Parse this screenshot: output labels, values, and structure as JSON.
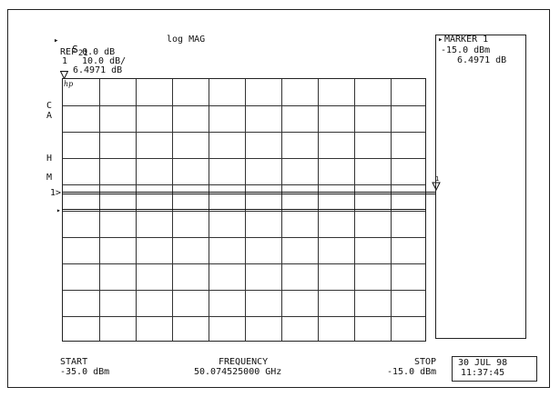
{
  "header": {
    "channel_arrow": "▸",
    "param_main": "S",
    "param_sub": "21",
    "format": "log MAG",
    "ref": "REF 0.0 dB",
    "marker_num": "1",
    "scale": "10.0 dB/",
    "marker_value": "6.4971 dB",
    "hp_logo": "hp"
  },
  "left_annotations": {
    "c": "C",
    "a": "A",
    "h": "H",
    "m": "M",
    "ref_marker": "1>",
    "ref_pointer": "▸"
  },
  "marker_panel": {
    "arrow": "▸",
    "title": "MARKER 1",
    "stimulus": "-15.0 dBm",
    "value": "6.4971 dB"
  },
  "footer": {
    "start_label": "START",
    "start_value": "-35.0 dBm",
    "center_label": "FREQUENCY",
    "center_value": "50.074525000 GHz",
    "stop_label": "STOP",
    "stop_value": "-15.0 dBm",
    "date": "30 JUL 98",
    "time": "11:37:45"
  },
  "trace": {
    "reference_level_db": 0.0,
    "scale_db_per_div": 10.0,
    "marker_stimulus_dbm": -15.0,
    "marker_value_db": 6.4971
  }
}
